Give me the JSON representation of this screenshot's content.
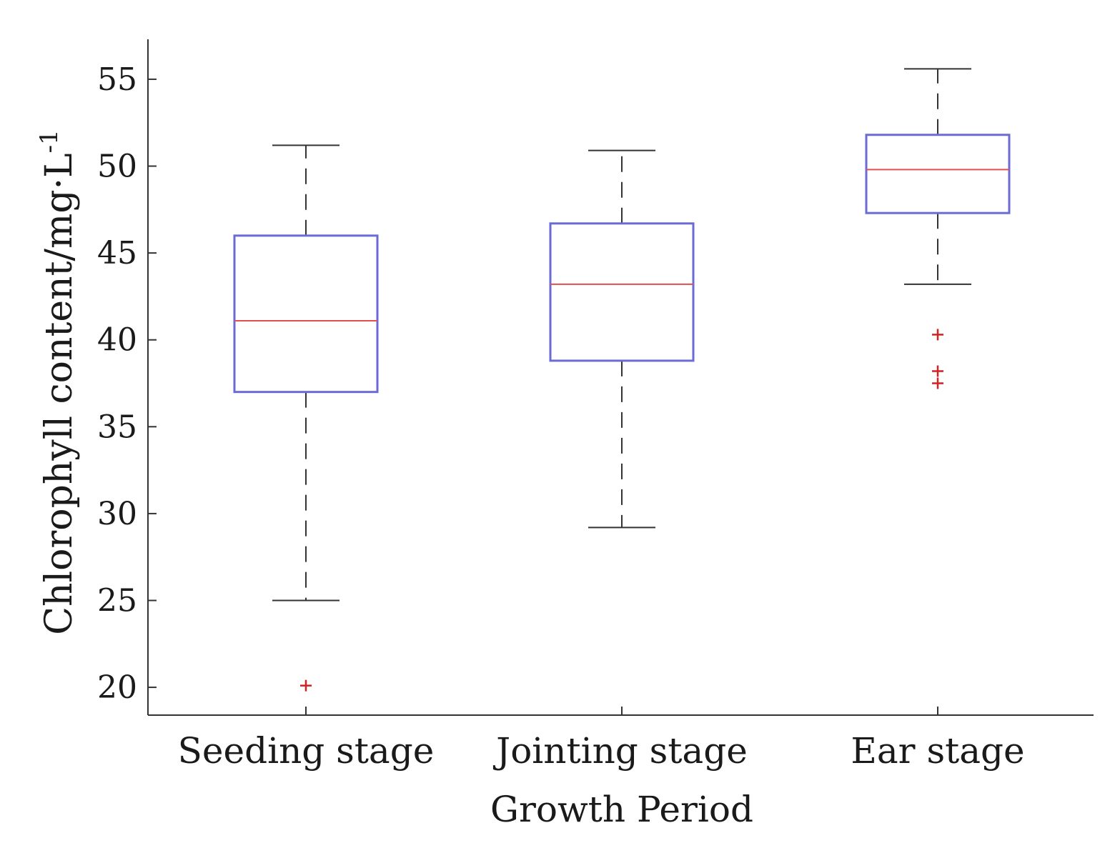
{
  "chart_data": {
    "type": "box",
    "xlabel": "Growth Period",
    "ylabel": {
      "main": "Chlorophyll content/mg·L",
      "superscript": "-1"
    },
    "ylim": [
      18.4,
      57.3
    ],
    "yticks": [
      "20",
      "25",
      "30",
      "35",
      "40",
      "45",
      "50",
      "55"
    ],
    "grid": false,
    "categories": [
      "Seeding stage",
      "Jointing stage",
      "Ear stage"
    ],
    "boxes": [
      {
        "whisker_low": 25.0,
        "q1": 37.0,
        "median": 41.1,
        "q3": 46.0,
        "whisker_high": 51.2,
        "outliers": [
          20.1
        ]
      },
      {
        "whisker_low": 29.2,
        "q1": 38.8,
        "median": 43.2,
        "q3": 46.7,
        "whisker_high": 50.9,
        "outliers": []
      },
      {
        "whisker_low": 43.2,
        "q1": 47.3,
        "median": 49.8,
        "q3": 51.8,
        "whisker_high": 55.6,
        "outliers": [
          40.3,
          38.2,
          37.5
        ]
      }
    ],
    "colors": {
      "box": "#6b6bd6",
      "median": "#e05050",
      "whisker": "#333333",
      "outlier": "#d42020",
      "axis": "#333333"
    }
  }
}
